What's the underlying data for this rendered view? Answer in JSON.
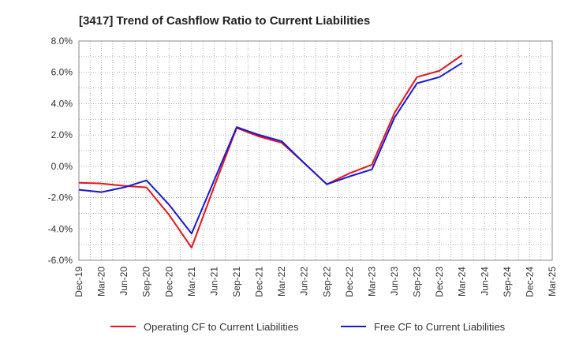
{
  "chart_data": {
    "type": "line",
    "title": "[3417]  Trend of Cashflow Ratio to Current Liabilities",
    "xlabel": "",
    "ylabel": "",
    "ylim": [
      -6.0,
      8.0
    ],
    "yticks": [
      -6.0,
      -4.0,
      -2.0,
      0.0,
      2.0,
      4.0,
      6.0,
      8.0
    ],
    "ytick_labels": [
      "-6.0%",
      "-4.0%",
      "-2.0%",
      "0.0%",
      "2.0%",
      "4.0%",
      "6.0%",
      "8.0%"
    ],
    "categories": [
      "Dec-19",
      "Mar-20",
      "Jun-20",
      "Sep-20",
      "Dec-20",
      "Mar-21",
      "Jun-21",
      "Sep-21",
      "Dec-21",
      "Mar-22",
      "Jun-22",
      "Sep-22",
      "Dec-22",
      "Mar-23",
      "Jun-23",
      "Sep-23",
      "Dec-23",
      "Mar-24",
      "Jun-24",
      "Sep-24",
      "Dec-24",
      "Mar-25"
    ],
    "grid": true,
    "legend_position": "bottom",
    "series": [
      {
        "name": "Operating CF to Current Liabilities",
        "color": "#e8141b",
        "values": [
          -1.05,
          -1.1,
          -1.25,
          -1.35,
          -3.1,
          -5.2,
          -1.3,
          2.45,
          1.9,
          1.5,
          0.2,
          -1.15,
          -0.45,
          0.1,
          3.4,
          5.7,
          6.1,
          7.1,
          null,
          null,
          null,
          null
        ]
      },
      {
        "name": "Free CF to Current Liabilities",
        "color": "#1818d6",
        "values": [
          -1.5,
          -1.65,
          -1.35,
          -0.9,
          -2.45,
          -4.3,
          -0.9,
          2.5,
          2.0,
          1.6,
          0.2,
          -1.15,
          -0.65,
          -0.2,
          3.1,
          5.3,
          5.7,
          6.6,
          null,
          null,
          null,
          null
        ]
      }
    ]
  }
}
